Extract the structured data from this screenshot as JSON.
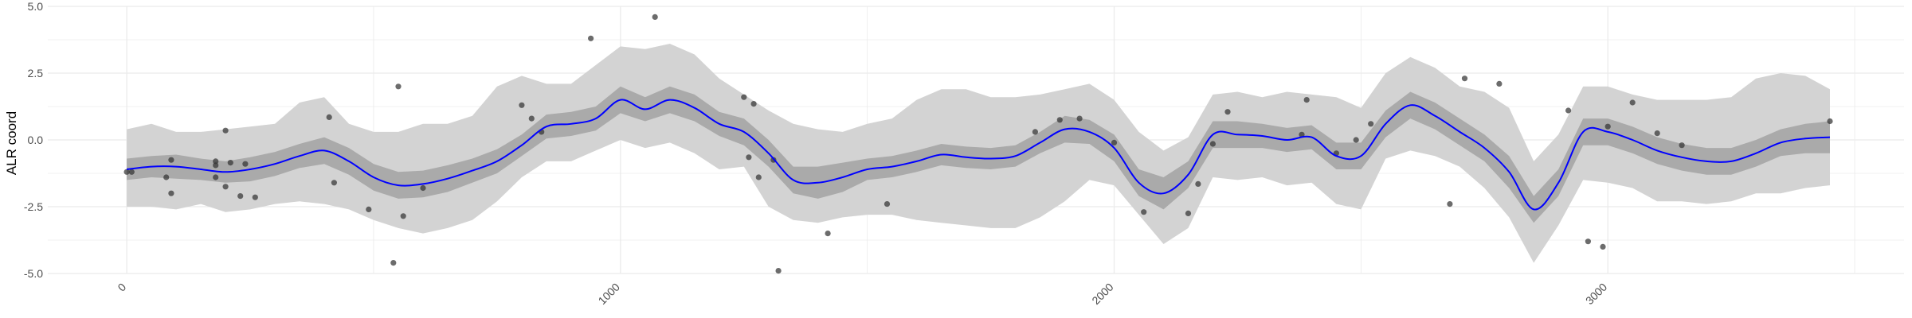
{
  "chart_data": {
    "type": "line",
    "title": "",
    "xlabel": "",
    "ylabel": "ALR coord",
    "xlim": [
      -160,
      3600
    ],
    "ylim": [
      -5.0,
      5.0
    ],
    "x_ticks": [
      0,
      1000,
      2000,
      3000
    ],
    "x_tick_labels": [
      "0",
      "1000",
      "2000",
      "3000"
    ],
    "y_ticks": [
      -5.0,
      -2.5,
      0.0,
      2.5,
      5.0
    ],
    "y_tick_labels": [
      "-5.0",
      "-2.5",
      "0.0",
      "2.5",
      "5.0"
    ],
    "grid": true,
    "colors": {
      "line": "#0000ff",
      "inner_band": "#aaaaaa",
      "outer_band": "#d3d3d3",
      "points": "#333333",
      "grid": "#ebebeb"
    },
    "series": [
      {
        "kind": "line",
        "x": [
          0,
          50,
          100,
          150,
          200,
          250,
          300,
          350,
          400,
          450,
          500,
          550,
          600,
          650,
          700,
          750,
          800,
          850,
          900,
          950,
          1000,
          1050,
          1100,
          1150,
          1200,
          1250,
          1300,
          1350,
          1400,
          1450,
          1500,
          1550,
          1600,
          1650,
          1700,
          1750,
          1800,
          1850,
          1900,
          1950,
          2000,
          2050,
          2100,
          2150,
          2200,
          2250,
          2300,
          2350,
          2400,
          2450,
          2500,
          2550,
          2600,
          2650,
          2700,
          2750,
          2800,
          2850,
          2900,
          2950,
          3000,
          3050,
          3100,
          3150,
          3200,
          3250,
          3300,
          3350,
          3400,
          3450
        ],
        "y": [
          -1.1,
          -1.0,
          -1.0,
          -1.1,
          -1.2,
          -1.1,
          -0.9,
          -0.6,
          -0.4,
          -0.8,
          -1.4,
          -1.7,
          -1.65,
          -1.45,
          -1.15,
          -0.8,
          -0.2,
          0.5,
          0.6,
          0.8,
          1.5,
          1.15,
          1.5,
          1.2,
          0.6,
          0.3,
          -0.5,
          -1.5,
          -1.6,
          -1.4,
          -1.1,
          -1.0,
          -0.8,
          -0.55,
          -0.65,
          -0.7,
          -0.6,
          -0.1,
          0.4,
          0.3,
          -0.3,
          -1.6,
          -2.0,
          -1.3,
          0.2,
          0.2,
          0.15,
          0.0,
          0.1,
          -0.6,
          -0.6,
          0.6,
          1.3,
          0.9,
          0.3,
          -0.3,
          -1.2,
          -2.6,
          -1.6,
          0.3,
          0.3,
          0.0,
          -0.4,
          -0.65,
          -0.8,
          -0.8,
          -0.5,
          -0.1,
          0.05,
          0.1
        ]
      },
      {
        "kind": "band-inner",
        "lower": [
          -1.5,
          -1.4,
          -1.45,
          -1.5,
          -1.6,
          -1.55,
          -1.35,
          -1.05,
          -0.9,
          -1.3,
          -1.9,
          -2.2,
          -2.15,
          -1.95,
          -1.6,
          -1.25,
          -0.6,
          0.05,
          0.15,
          0.35,
          1.0,
          0.7,
          1.0,
          0.7,
          0.15,
          -0.2,
          -1.0,
          -2.0,
          -2.2,
          -1.95,
          -1.5,
          -1.4,
          -1.2,
          -0.95,
          -1.05,
          -1.1,
          -1.0,
          -0.5,
          -0.1,
          -0.15,
          -0.8,
          -2.1,
          -2.6,
          -1.8,
          -0.3,
          -0.3,
          -0.3,
          -0.45,
          -0.35,
          -1.1,
          -1.1,
          0.1,
          0.8,
          0.4,
          -0.2,
          -0.8,
          -1.8,
          -3.1,
          -2.1,
          -0.2,
          -0.2,
          -0.5,
          -0.9,
          -1.15,
          -1.3,
          -1.3,
          -1.0,
          -0.6,
          -0.5,
          -0.5
        ],
        "upper": [
          -0.7,
          -0.6,
          -0.55,
          -0.7,
          -0.8,
          -0.65,
          -0.45,
          -0.15,
          0.1,
          -0.3,
          -0.9,
          -1.2,
          -1.15,
          -0.95,
          -0.7,
          -0.35,
          0.2,
          0.95,
          1.05,
          1.25,
          2.0,
          1.6,
          2.0,
          1.7,
          1.05,
          0.8,
          0.0,
          -1.0,
          -1.0,
          -0.85,
          -0.7,
          -0.6,
          -0.4,
          -0.15,
          -0.25,
          -0.3,
          -0.2,
          0.3,
          0.9,
          0.75,
          0.2,
          -1.1,
          -1.4,
          -0.8,
          0.7,
          0.7,
          0.6,
          0.45,
          0.55,
          -0.1,
          -0.1,
          1.1,
          1.8,
          1.4,
          0.8,
          0.2,
          -0.6,
          -2.1,
          -1.1,
          0.8,
          0.8,
          0.5,
          0.1,
          -0.15,
          -0.3,
          -0.3,
          0.0,
          0.4,
          0.6,
          0.7
        ]
      },
      {
        "kind": "band-outer",
        "lower": [
          -2.5,
          -2.5,
          -2.6,
          -2.4,
          -2.7,
          -2.6,
          -2.4,
          -2.3,
          -2.4,
          -2.6,
          -3.0,
          -3.3,
          -3.5,
          -3.3,
          -3.0,
          -2.3,
          -1.4,
          -0.8,
          -0.8,
          -0.4,
          0.0,
          -0.3,
          -0.1,
          -0.5,
          -1.1,
          -1.0,
          -2.5,
          -3.0,
          -3.1,
          -2.9,
          -2.8,
          -2.8,
          -3.0,
          -3.1,
          -3.2,
          -3.3,
          -3.3,
          -2.9,
          -2.3,
          -1.5,
          -1.7,
          -2.8,
          -3.9,
          -3.3,
          -1.4,
          -1.5,
          -1.4,
          -1.7,
          -1.6,
          -2.4,
          -2.6,
          -0.7,
          -0.4,
          -0.6,
          -1.0,
          -1.8,
          -2.9,
          -4.6,
          -3.2,
          -1.5,
          -1.6,
          -1.8,
          -2.3,
          -2.3,
          -2.4,
          -2.3,
          -2.0,
          -2.0,
          -1.8,
          -1.7
        ],
        "upper": [
          0.4,
          0.6,
          0.3,
          0.3,
          0.4,
          0.5,
          0.6,
          1.4,
          1.6,
          0.6,
          0.3,
          0.3,
          0.6,
          0.6,
          0.9,
          2.0,
          2.4,
          2.1,
          2.1,
          2.8,
          3.5,
          3.4,
          3.6,
          3.2,
          2.3,
          1.7,
          1.1,
          0.6,
          0.4,
          0.3,
          0.6,
          0.8,
          1.5,
          1.9,
          1.9,
          1.6,
          1.6,
          1.7,
          1.9,
          2.1,
          1.5,
          0.3,
          -0.4,
          0.1,
          1.7,
          1.8,
          1.6,
          1.8,
          1.7,
          1.6,
          1.2,
          2.5,
          3.1,
          2.7,
          2.0,
          1.8,
          1.2,
          -0.8,
          0.2,
          2.0,
          2.0,
          1.7,
          1.5,
          1.5,
          1.5,
          1.6,
          2.3,
          2.5,
          2.4,
          1.9
        ]
      },
      {
        "kind": "points",
        "x": [
          0,
          10,
          80,
          90,
          90,
          180,
          180,
          180,
          200,
          200,
          210,
          230,
          240,
          260,
          410,
          420,
          490,
          540,
          550,
          560,
          600,
          800,
          820,
          840,
          940,
          1070,
          1250,
          1260,
          1270,
          1280,
          1310,
          1320,
          1420,
          1540,
          1840,
          1890,
          1930,
          2000,
          2060,
          2150,
          2170,
          2200,
          2230,
          2380,
          2390,
          2450,
          2490,
          2520,
          2680,
          2710,
          2780,
          2920,
          2960,
          2990,
          3000,
          3050,
          3100,
          3150,
          3450
        ],
        "y": [
          -1.2,
          -1.2,
          -1.4,
          -2.0,
          -0.75,
          -0.8,
          -0.95,
          -1.4,
          0.35,
          -1.75,
          -0.85,
          -2.1,
          -0.9,
          -2.15,
          0.85,
          -1.6,
          -2.6,
          -4.6,
          2.0,
          -2.85,
          -1.8,
          1.3,
          0.8,
          0.3,
          3.8,
          4.6,
          1.6,
          -0.65,
          1.35,
          -1.4,
          -0.75,
          -4.9,
          -3.5,
          -2.4,
          0.3,
          0.75,
          0.8,
          -0.1,
          -2.7,
          -2.75,
          -1.65,
          -0.15,
          1.05,
          0.2,
          1.5,
          -0.5,
          0.0,
          0.6,
          -2.4,
          2.3,
          2.1,
          1.1,
          -3.8,
          -4.0,
          0.5,
          1.4,
          0.25,
          -0.2,
          0.7
        ]
      }
    ]
  }
}
